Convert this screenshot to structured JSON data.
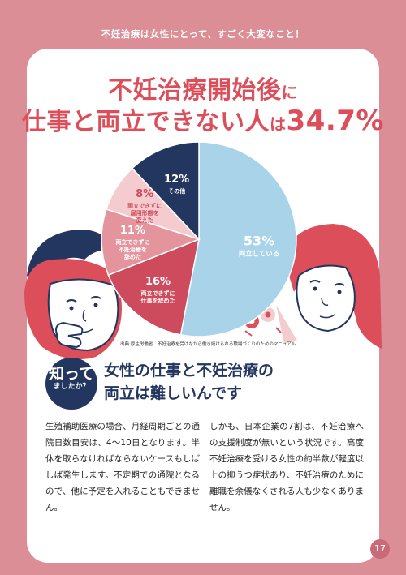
{
  "header": {
    "title": "不妊治療は女性にとって、すごく大変なこと！"
  },
  "headline": {
    "line1_main": "不妊治療開始後",
    "line1_small": "に",
    "line2_main": "仕事と両立できない人",
    "line2_small": "は",
    "line2_pct": "34.7%"
  },
  "chart_data": {
    "type": "pie",
    "slices": [
      {
        "value": 53,
        "label": "53%",
        "text": [
          "両立している"
        ],
        "color": "#a9d3e9"
      },
      {
        "value": 16,
        "label": "16%",
        "text": [
          "両立できずに",
          "仕事を辞めた"
        ],
        "color": "#cd4b5c"
      },
      {
        "value": 11,
        "label": "11%",
        "text": [
          "両立できずに",
          "不妊治療を",
          "辞めた"
        ],
        "color": "#e4949c"
      },
      {
        "value": 8,
        "label": "8%",
        "text": [
          "両立できずに",
          "雇用形態を",
          "変えた"
        ],
        "color": "#f4ccd0"
      },
      {
        "value": 12,
        "label": "12%",
        "text": [
          "その他"
        ],
        "color": "#23365f"
      }
    ]
  },
  "source": "出典:厚生労働省　不妊治療を受けながら働き続けられる職場づくりのためのマニュアル",
  "know": {
    "badge_big": "知って",
    "badge_small": "ましたか？",
    "title_line1": "女性の仕事と不妊治療の",
    "title_line2": "両立は難しいんです"
  },
  "body": {
    "col1": "生殖補助医療の場合、月経周期ごとの通院日数目安は、4～10日となります。半休を取らなければならないケースもしばしば発生します。不定期での通院となるので、他に予定を入れることもできません。",
    "col2": "しかも、日本企業の7割は、不妊治療への支援制度が無いという状況です。高度不妊治療を受ける女性の約半数が軽度以上の抑うつ症状あり、不妊治療のために離職を余儀なくされる人も少なくありません。"
  },
  "page_number": "17",
  "colors": {
    "background": "#db8e96",
    "headline": "#dc4f5a",
    "navy": "#23365f"
  }
}
